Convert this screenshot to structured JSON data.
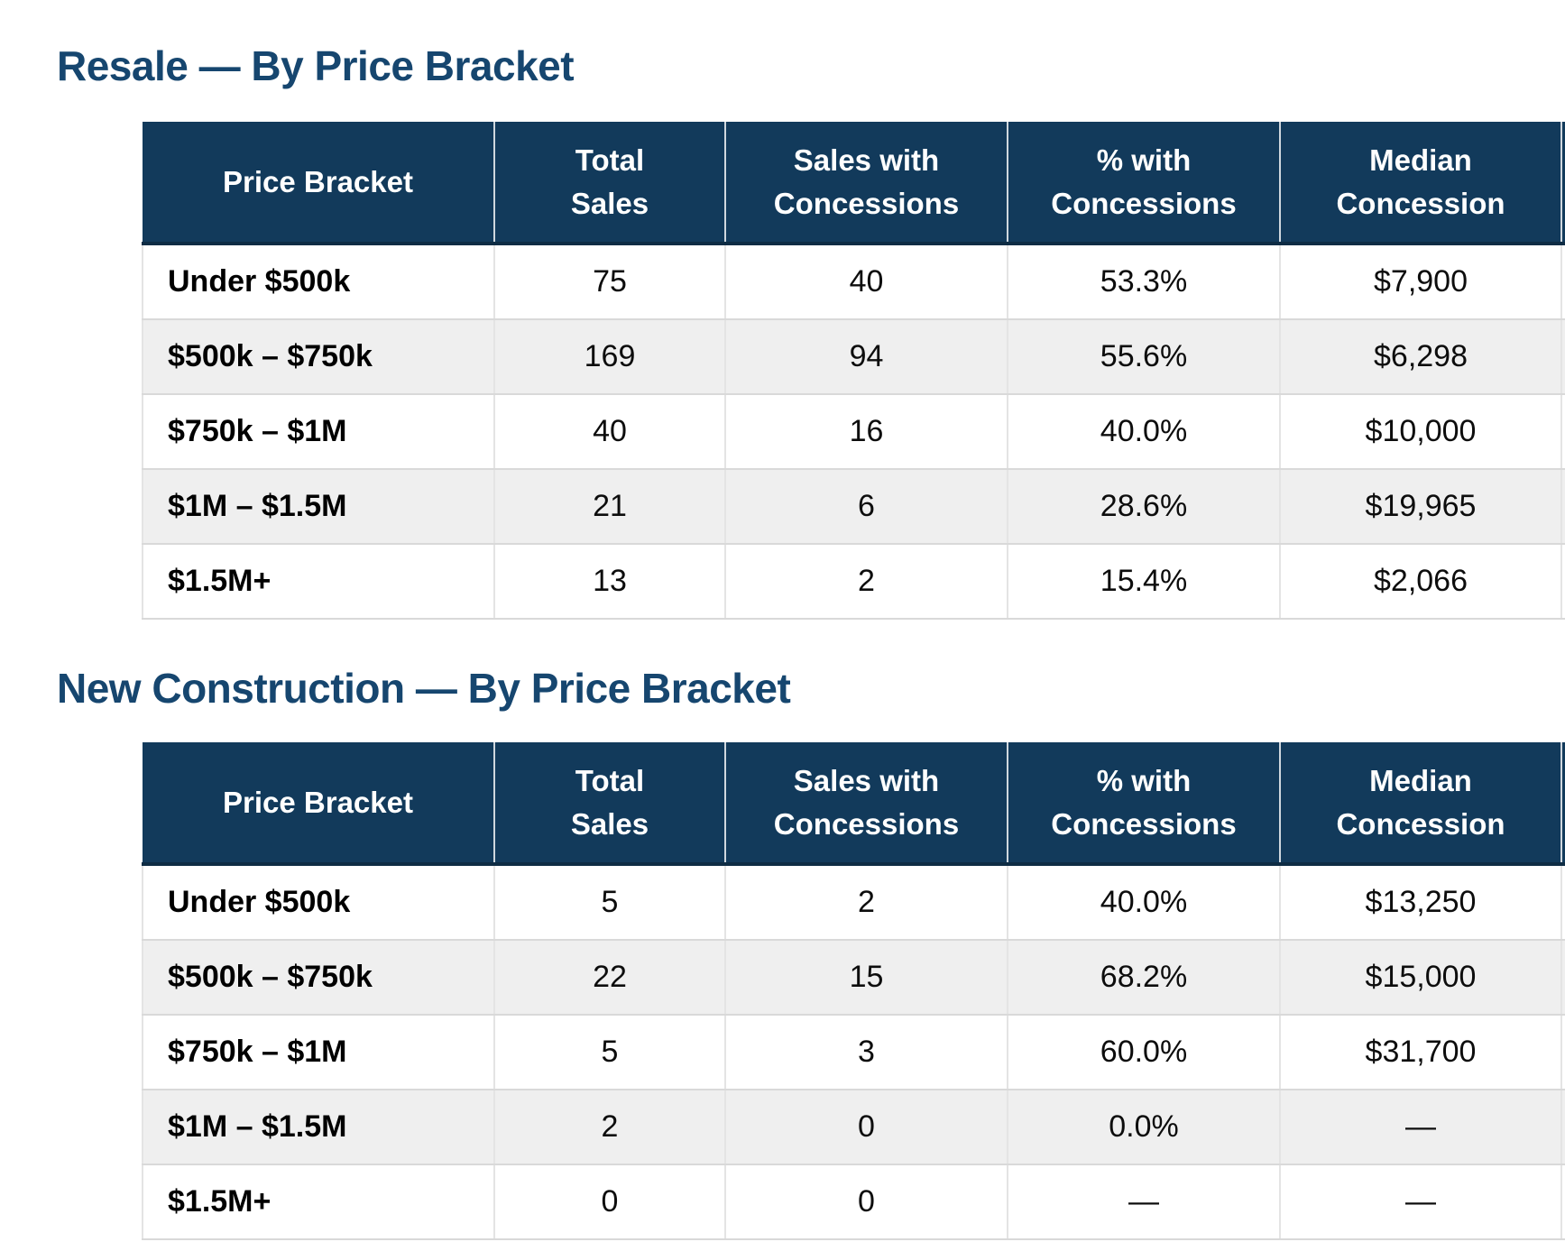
{
  "page": {
    "background": "#ffffff"
  },
  "colors": {
    "title_text": "#16466F",
    "header_bg": "#123A5B",
    "header_text": "#FFFFFF",
    "header_bottom_border": "#0E2C44",
    "row_stripe": "#EFEFEF",
    "row_border": "#D9D9D9",
    "body_text": "#0D0D0D"
  },
  "sections": [
    {
      "title": "Resale — By Price Bracket",
      "columns": [
        "Price Bracket",
        "Total\nSales",
        "Sales with\nConcessions",
        "% with\nConcessions",
        "Median\nConcession"
      ],
      "rows": [
        [
          "Under $500k",
          "75",
          "40",
          "53.3%",
          "$7,900"
        ],
        [
          "$500k – $750k",
          "169",
          "94",
          "55.6%",
          "$6,298"
        ],
        [
          "$750k – $1M",
          "40",
          "16",
          "40.0%",
          "$10,000"
        ],
        [
          "$1M – $1.5M",
          "21",
          "6",
          "28.6%",
          "$19,965"
        ],
        [
          "$1.5M+",
          "13",
          "2",
          "15.4%",
          "$2,066"
        ]
      ]
    },
    {
      "title": "New Construction — By Price Bracket",
      "columns": [
        "Price Bracket",
        "Total\nSales",
        "Sales with\nConcessions",
        "% with\nConcessions",
        "Median\nConcession"
      ],
      "rows": [
        [
          "Under $500k",
          "5",
          "2",
          "40.0%",
          "$13,250"
        ],
        [
          "$500k – $750k",
          "22",
          "15",
          "68.2%",
          "$15,000"
        ],
        [
          "$750k – $1M",
          "5",
          "3",
          "60.0%",
          "$31,700"
        ],
        [
          "$1M – $1.5M",
          "2",
          "0",
          "0.0%",
          "—"
        ],
        [
          "$1.5M+",
          "0",
          "0",
          "—",
          "—"
        ]
      ]
    }
  ],
  "chart_data": [
    {
      "type": "table",
      "title": "Resale — By Price Bracket",
      "columns": [
        "Price Bracket",
        "Total Sales",
        "Sales with Concessions",
        "% with Concessions",
        "Median Concession"
      ],
      "rows": [
        [
          "Under $500k",
          75,
          40,
          "53.3%",
          "$7,900"
        ],
        [
          "$500k – $750k",
          169,
          94,
          "55.6%",
          "$6,298"
        ],
        [
          "$750k – $1M",
          40,
          16,
          "40.0%",
          "$10,000"
        ],
        [
          "$1M – $1.5M",
          21,
          6,
          "28.6%",
          "$19,965"
        ],
        [
          "$1.5M+",
          13,
          2,
          "15.4%",
          "$2,066"
        ]
      ]
    },
    {
      "type": "table",
      "title": "New Construction — By Price Bracket",
      "columns": [
        "Price Bracket",
        "Total Sales",
        "Sales with Concessions",
        "% with Concessions",
        "Median Concession"
      ],
      "rows": [
        [
          "Under $500k",
          5,
          2,
          "40.0%",
          "$13,250"
        ],
        [
          "$500k – $750k",
          22,
          15,
          "68.2%",
          "$15,000"
        ],
        [
          "$750k – $1M",
          5,
          3,
          "60.0%",
          "$31,700"
        ],
        [
          "$1M – $1.5M",
          2,
          0,
          "0.0%",
          "—"
        ],
        [
          "$1.5M+",
          0,
          0,
          "—",
          "—"
        ]
      ]
    }
  ]
}
